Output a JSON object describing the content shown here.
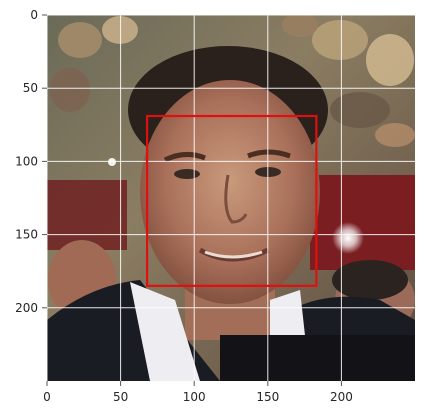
{
  "image": {
    "description_icon": "face-photo",
    "x_range": [
      0,
      250
    ],
    "y_range": [
      0,
      250
    ],
    "y_inverted": true
  },
  "axes": {
    "x_ticks": [
      0,
      50,
      100,
      150,
      200
    ],
    "y_ticks": [
      0,
      50,
      100,
      150,
      200
    ],
    "grid": true,
    "grid_color": "#ffffff"
  },
  "bounding_box": {
    "x_min": 68,
    "y_min": 69,
    "x_max": 183,
    "y_max": 185,
    "color": "#e01010"
  },
  "colors": {
    "axes_face": "#eaeaf2",
    "tick_text": "#262626",
    "tick_mark": "#555555"
  }
}
